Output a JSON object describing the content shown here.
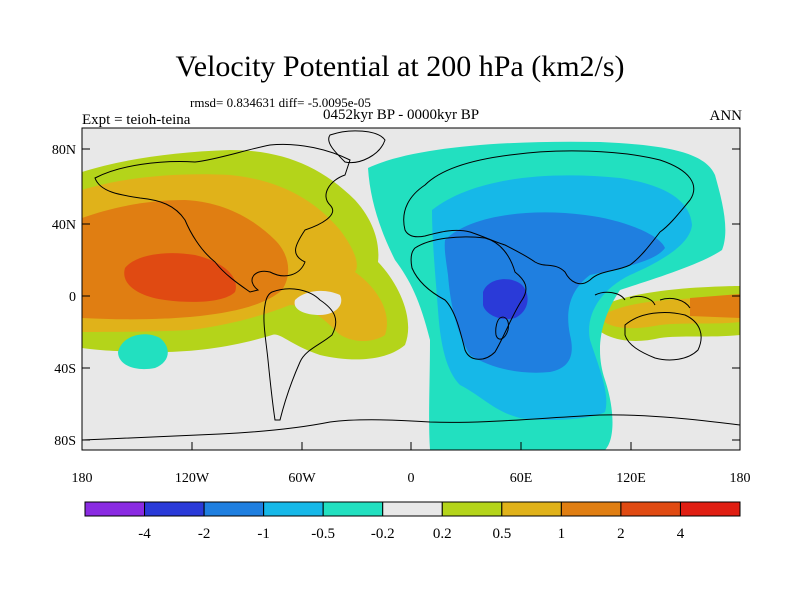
{
  "title": "Velocity Potential at 200 hPa (km2/s)",
  "stats": "rmsd= 0.834631 diff= -5.0095e-05",
  "period": "0452kyr BP - 0000kyr BP",
  "experiment": "Expt = teioh-teina",
  "season": "ANN",
  "axes": {
    "lat_ticks": [
      "80N",
      "40N",
      "0",
      "40S",
      "80S"
    ],
    "lon_ticks": [
      "180",
      "120W",
      "60W",
      "0",
      "60E",
      "120E",
      "180"
    ]
  },
  "colorbar": {
    "labels": [
      "-4",
      "-2",
      "-1",
      "-0.5",
      "-0.2",
      "0.2",
      "0.5",
      "1",
      "2",
      "4"
    ],
    "colors": [
      "#8a2be2",
      "#2a3ad8",
      "#1f7fe0",
      "#16b8e8",
      "#22e0c0",
      "#e8e8e8",
      "#b4d41a",
      "#e0b21a",
      "#e07e12",
      "#e04a12",
      "#e01e12"
    ]
  },
  "field_colors": {
    "neutral": "#e8e8e8",
    "pos_02": "#b4d41a",
    "pos_05": "#e0b21a",
    "pos_1": "#e07e12",
    "pos_2": "#e04a12",
    "neg_02": "#22e0c0",
    "neg_05": "#16b8e8",
    "neg_1": "#1f7fe0",
    "neg_2": "#2a3ad8"
  }
}
